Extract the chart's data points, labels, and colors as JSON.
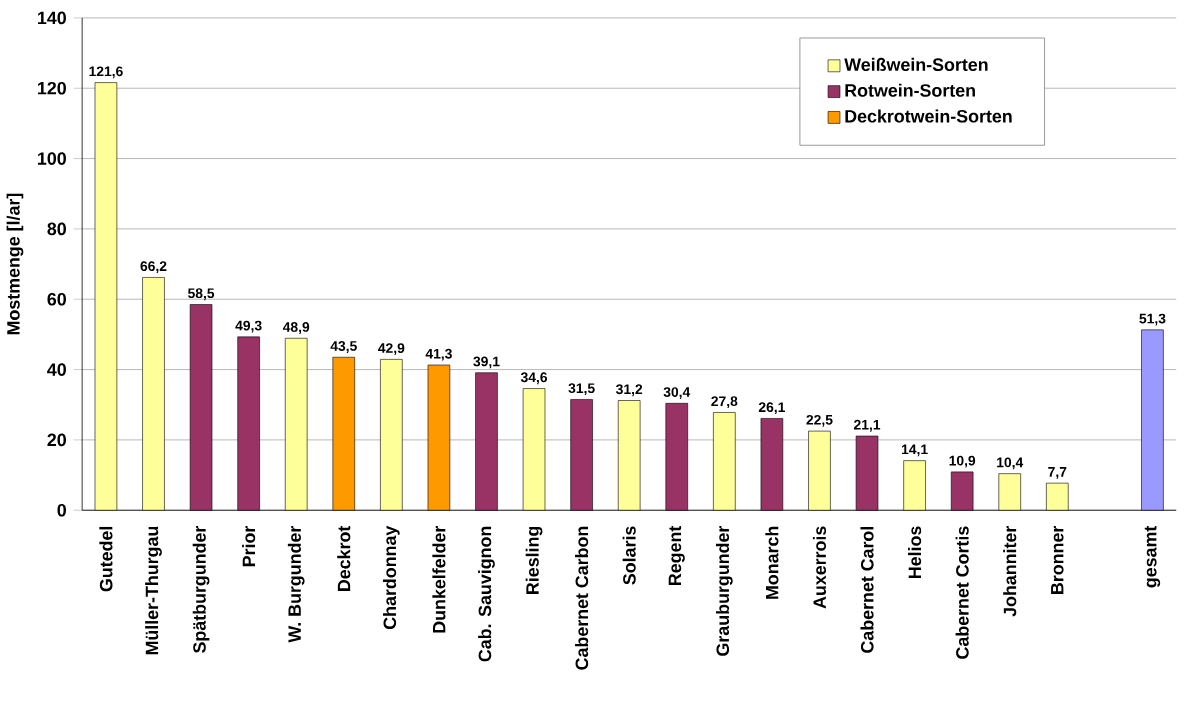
{
  "chart_data": {
    "type": "bar",
    "ylabel": "Mostmenge [l/ar]",
    "categories": [
      "Gutedel",
      "Müller-Thurgau",
      "Spätburgunder",
      "Prior",
      "W. Burgunder",
      "Deckrot",
      "Chardonnay",
      "Dunkelfelder",
      "Cab. Sauvignon",
      "Riesling",
      "Cabernet Carbon",
      "Solaris",
      "Regent",
      "Grauburgunder",
      "Monarch",
      "Auxerrois",
      "Cabernet Carol",
      "Helios",
      "Cabernet Cortis",
      "Johanniter",
      "Bronner",
      null,
      "gesamt"
    ],
    "series": [
      {
        "name": "Weißwein-Sorten",
        "color": "#ffff99",
        "values": [
          121.6,
          66.2,
          null,
          null,
          48.9,
          null,
          42.9,
          null,
          null,
          34.6,
          null,
          31.2,
          null,
          27.8,
          null,
          22.5,
          null,
          14.1,
          null,
          10.4,
          7.7,
          null,
          null
        ],
        "value_labels": [
          "121,6",
          "66,2",
          null,
          null,
          "48,9",
          null,
          "42,9",
          null,
          null,
          "34,6",
          null,
          "31,2",
          null,
          "27,8",
          null,
          "22,5",
          null,
          "14,1",
          null,
          "10,4",
          "7,7",
          null,
          null
        ]
      },
      {
        "name": "Rotwein-Sorten",
        "color": "#993366",
        "values": [
          null,
          null,
          58.5,
          49.3,
          null,
          null,
          null,
          null,
          39.1,
          null,
          31.5,
          null,
          30.4,
          null,
          26.1,
          null,
          21.1,
          null,
          10.9,
          null,
          null,
          null,
          null
        ],
        "value_labels": [
          null,
          null,
          "58,5",
          "49,3",
          null,
          null,
          null,
          null,
          "39,1",
          null,
          "31,5",
          null,
          "30,4",
          null,
          "26,1",
          null,
          "21,1",
          null,
          "10,9",
          null,
          null,
          null,
          null
        ]
      },
      {
        "name": "Deckrotwein-Sorten",
        "color": "#ff9900",
        "values": [
          null,
          null,
          null,
          null,
          null,
          43.5,
          null,
          41.3,
          null,
          null,
          null,
          null,
          null,
          null,
          null,
          null,
          null,
          null,
          null,
          null,
          null,
          null,
          null
        ],
        "value_labels": [
          null,
          null,
          null,
          null,
          null,
          "43,5",
          null,
          "41,3",
          null,
          null,
          null,
          null,
          null,
          null,
          null,
          null,
          null,
          null,
          null,
          null,
          null,
          null,
          null
        ]
      },
      {
        "color": "#9999ff",
        "values": [
          null,
          null,
          null,
          null,
          null,
          null,
          null,
          null,
          null,
          null,
          null,
          null,
          null,
          null,
          null,
          null,
          null,
          null,
          null,
          null,
          null,
          null,
          51.3
        ],
        "value_labels": [
          null,
          null,
          null,
          null,
          null,
          null,
          null,
          null,
          null,
          null,
          null,
          null,
          null,
          null,
          null,
          null,
          null,
          null,
          null,
          null,
          null,
          null,
          "51,3"
        ]
      }
    ],
    "ylim": [
      0,
      140
    ],
    "yticks": [
      0,
      20,
      40,
      60,
      80,
      100,
      120,
      140
    ],
    "grid": "y",
    "legend": "top right"
  }
}
